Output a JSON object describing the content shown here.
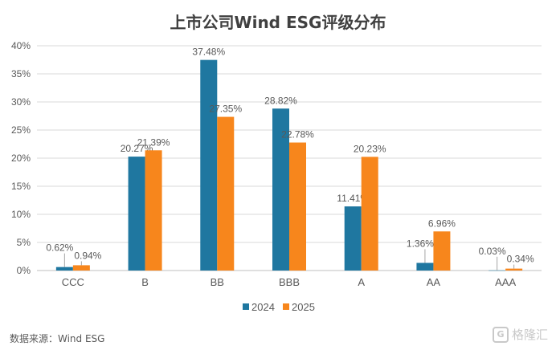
{
  "title": "上市公司Wind ESG评级分布",
  "source": "数据来源：Wind ESG",
  "watermark": {
    "logo": "G",
    "text": "格隆汇"
  },
  "chart_data": {
    "type": "bar",
    "title": "上市公司Wind ESG评级分布",
    "categories": [
      "CCC",
      "B",
      "BB",
      "BBB",
      "A",
      "AA",
      "AAA"
    ],
    "series": [
      {
        "name": "2024",
        "color": "#1f77a0",
        "values": [
          0.62,
          20.27,
          37.48,
          28.82,
          11.41,
          1.36,
          0.03
        ],
        "labels": [
          "0.62%",
          "20.27%",
          "37.48%",
          "28.82%",
          "11.41%",
          "1.36%",
          "0.03%"
        ]
      },
      {
        "name": "2025",
        "color": "#f7861c",
        "values": [
          0.94,
          21.39,
          27.35,
          22.78,
          20.23,
          6.96,
          0.34
        ],
        "labels": [
          "0.94%",
          "21.39%",
          "27.35%",
          "22.78%",
          "20.23%",
          "6.96%",
          "0.34%"
        ]
      }
    ],
    "ylim": [
      0,
      40
    ],
    "yticks": [
      "0%",
      "5%",
      "10%",
      "15%",
      "20%",
      "25%",
      "30%",
      "35%",
      "40%"
    ],
    "grid": true,
    "legend": "bottom"
  }
}
